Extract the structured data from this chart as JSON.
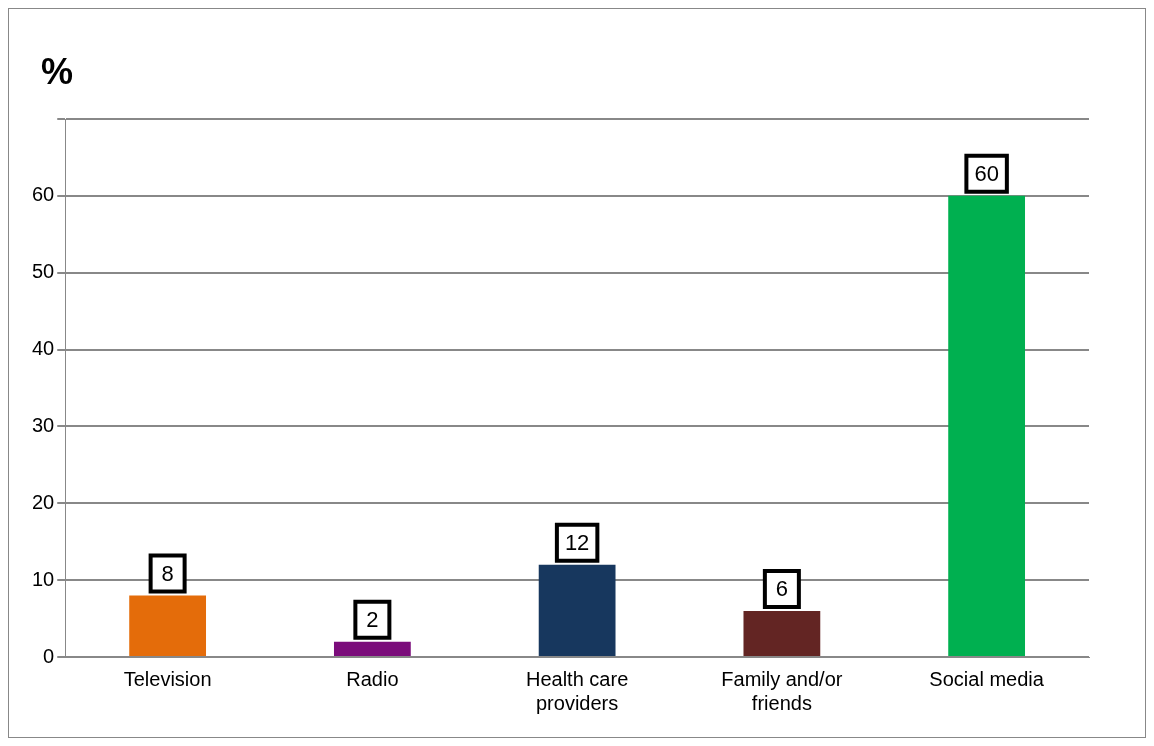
{
  "chart_data": {
    "type": "bar",
    "ylabel": "%",
    "categories": [
      "Television",
      "Radio",
      "Health care providers",
      "Family and/or friends",
      "Social media"
    ],
    "values": [
      8,
      2,
      12,
      6,
      60
    ],
    "colors": [
      "#e46c0a",
      "#7b0c7b",
      "#17375e",
      "#632523",
      "#00b050"
    ],
    "ylim": [
      0,
      70
    ],
    "yticks": [
      0,
      10,
      20,
      30,
      40,
      50,
      60,
      {
        "value": 70,
        "label": null
      }
    ],
    "grid": "y",
    "data_labels": true,
    "legend": false
  }
}
